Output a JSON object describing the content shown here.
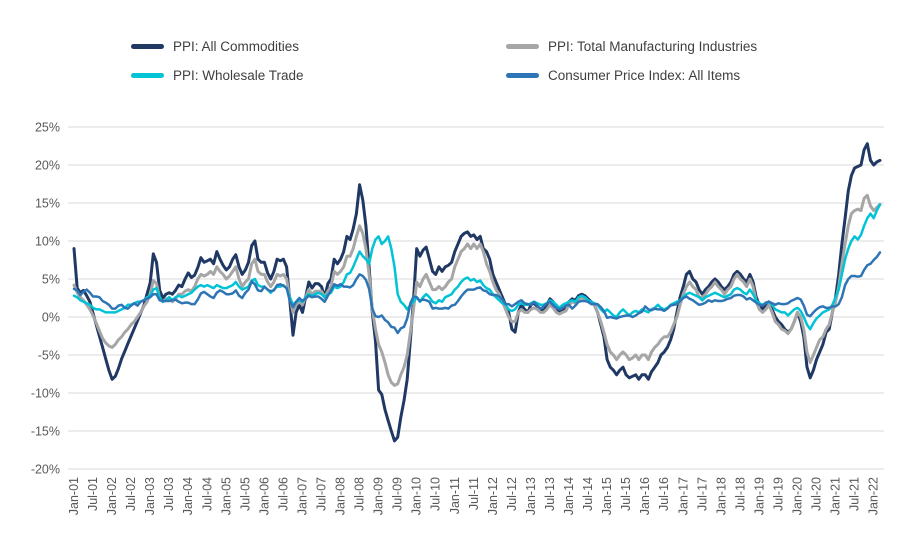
{
  "legend": {
    "items": [
      {
        "label": "PPI: All Commodities",
        "color": "#1f3864"
      },
      {
        "label": "PPI: Total Manufacturing Industries",
        "color": "#a6a6a6"
      },
      {
        "label": "PPI: Wholesale Trade",
        "color": "#00c3d6"
      },
      {
        "label": "Consumer Price Index: All Items",
        "color": "#2e75b6"
      }
    ]
  },
  "chart_data": {
    "type": "line",
    "title": "",
    "x_frequency": "monthly",
    "x_start": "Jan-01",
    "x_end": "Mar-22",
    "grid": "horizontal",
    "legend_position": "top",
    "ylim": [
      -20,
      25
    ],
    "y_step": 5,
    "y_tick_labels": [
      "25%",
      "20%",
      "15%",
      "10%",
      "5%",
      "0%",
      "-5%",
      "-10%",
      "-15%",
      "-20%"
    ],
    "x_tick_labels": [
      "Jan-01",
      "Jul-01",
      "Jan-02",
      "Jul-02",
      "Jan-03",
      "Jul-03",
      "Jan-04",
      "Jul-04",
      "Jan-05",
      "Jul-05",
      "Jan-06",
      "Jul-06",
      "Jan-07",
      "Jul-07",
      "Jan-08",
      "Jul-08",
      "Jan-09",
      "Jul-09",
      "Jan-10",
      "Jul-10",
      "Jan-11",
      "Jul-11",
      "Jan-12",
      "Jul-12",
      "Jan-13",
      "Jul-13",
      "Jan-14",
      "Jul-14",
      "Jan-15",
      "Jul-15",
      "Jan-16",
      "Jul-16",
      "Jan-17",
      "Jul-17",
      "Jan-18",
      "Jul-18",
      "Jan-19",
      "Jul-19",
      "Jan-20",
      "Jul-20",
      "Jan-21",
      "Jul-21",
      "Jan-22"
    ],
    "series": [
      {
        "name": "PPI: All Commodities",
        "color": "#1f3864",
        "values": [
          9.0,
          3.8,
          3.2,
          3.5,
          2.8,
          2.0,
          0.5,
          -1.0,
          -2.5,
          -4.0,
          -5.5,
          -7.0,
          -8.2,
          -7.8,
          -6.8,
          -5.5,
          -4.5,
          -3.5,
          -2.5,
          -1.5,
          -0.5,
          0.5,
          1.5,
          3.0,
          4.5,
          8.3,
          7.2,
          3.5,
          2.5,
          3.0,
          3.2,
          3.0,
          3.5,
          4.2,
          4.0,
          5.0,
          5.8,
          5.2,
          5.5,
          6.5,
          7.8,
          7.2,
          7.4,
          7.6,
          7.0,
          8.6,
          7.6,
          6.8,
          6.2,
          6.6,
          7.6,
          8.2,
          6.6,
          5.6,
          6.2,
          7.2,
          9.4,
          10.0,
          7.6,
          7.2,
          7.2,
          5.8,
          5.0,
          6.0,
          7.6,
          7.4,
          7.6,
          6.6,
          2.2,
          -2.4,
          0.6,
          1.6,
          0.6,
          2.6,
          4.6,
          3.8,
          4.4,
          4.4,
          4.0,
          2.6,
          4.4,
          5.0,
          7.6,
          7.0,
          7.6,
          8.6,
          10.6,
          10.2,
          11.6,
          13.6,
          17.4,
          15.4,
          12.0,
          6.6,
          0.6,
          -3.2,
          -9.6,
          -10.2,
          -12.2,
          -13.6,
          -15.0,
          -16.3,
          -15.8,
          -13.2,
          -11.0,
          -8.2,
          -3.0,
          2.2,
          9.0,
          8.0,
          8.8,
          9.2,
          7.6,
          6.0,
          5.6,
          6.6,
          6.0,
          6.6,
          6.8,
          7.2,
          8.6,
          9.6,
          10.6,
          11.0,
          11.2,
          10.6,
          10.8,
          10.2,
          10.6,
          9.0,
          8.6,
          7.6,
          5.6,
          4.6,
          3.6,
          2.6,
          1.6,
          0.6,
          -1.6,
          -2.0,
          0.6,
          1.6,
          1.0,
          0.6,
          1.6,
          1.8,
          1.4,
          1.0,
          0.8,
          1.6,
          2.4,
          2.0,
          1.0,
          0.6,
          0.8,
          1.2,
          2.0,
          2.4,
          2.2,
          2.8,
          3.0,
          2.8,
          2.4,
          2.0,
          1.6,
          0.6,
          -1.0,
          -2.6,
          -5.6,
          -6.6,
          -7.0,
          -7.6,
          -7.0,
          -6.6,
          -7.6,
          -8.0,
          -7.8,
          -7.6,
          -8.2,
          -7.6,
          -7.6,
          -8.2,
          -7.2,
          -6.6,
          -6.0,
          -5.0,
          -4.6,
          -4.0,
          -3.0,
          -1.6,
          0.6,
          2.6,
          4.0,
          5.6,
          6.0,
          5.0,
          4.6,
          3.6,
          3.0,
          3.6,
          4.0,
          4.6,
          5.0,
          4.6,
          4.0,
          3.6,
          4.0,
          4.6,
          5.6,
          6.0,
          5.6,
          5.0,
          4.6,
          5.6,
          4.6,
          2.6,
          1.6,
          1.0,
          1.6,
          2.0,
          1.0,
          0.0,
          -0.6,
          -1.0,
          -1.6,
          -2.0,
          -1.6,
          -0.6,
          0.6,
          -0.6,
          -2.6,
          -6.6,
          -8.0,
          -7.0,
          -5.6,
          -4.6,
          -3.6,
          -2.0,
          -1.6,
          0.6,
          2.6,
          5.6,
          9.6,
          13.0,
          16.6,
          18.6,
          19.6,
          19.8,
          20.0,
          22.0,
          22.8,
          20.6,
          20.0,
          20.4,
          20.6
        ]
      },
      {
        "name": "PPI: Total Manufacturing Industries",
        "color": "#a6a6a6",
        "values": [
          4.2,
          3.2,
          2.6,
          2.2,
          1.6,
          1.0,
          0.2,
          -0.8,
          -1.8,
          -2.8,
          -3.4,
          -3.8,
          -4.0,
          -3.6,
          -3.0,
          -2.6,
          -2.0,
          -1.6,
          -1.0,
          -0.6,
          0.0,
          0.6,
          1.4,
          2.0,
          3.0,
          4.8,
          4.4,
          2.4,
          2.0,
          2.4,
          2.4,
          2.0,
          2.4,
          3.0,
          3.0,
          3.4,
          3.6,
          3.4,
          4.0,
          5.0,
          5.6,
          5.4,
          5.6,
          6.0,
          5.6,
          6.6,
          6.0,
          5.6,
          5.0,
          5.4,
          6.0,
          6.6,
          5.0,
          4.0,
          4.6,
          5.0,
          7.0,
          7.6,
          6.0,
          5.6,
          5.6,
          4.6,
          4.0,
          4.6,
          5.6,
          5.4,
          5.6,
          5.0,
          2.6,
          0.6,
          1.6,
          2.0,
          1.6,
          2.6,
          3.6,
          3.0,
          3.4,
          3.4,
          3.4,
          2.6,
          3.4,
          4.0,
          6.0,
          5.6,
          6.0,
          6.6,
          8.0,
          8.0,
          9.0,
          10.6,
          12.0,
          11.0,
          9.0,
          5.6,
          1.0,
          -1.6,
          -3.6,
          -4.6,
          -6.0,
          -7.6,
          -8.6,
          -9.0,
          -8.8,
          -7.6,
          -6.6,
          -5.0,
          -2.0,
          1.0,
          4.6,
          4.0,
          5.0,
          5.6,
          4.6,
          3.6,
          3.6,
          4.0,
          3.6,
          4.0,
          4.6,
          5.0,
          6.6,
          7.6,
          8.6,
          9.0,
          9.6,
          9.0,
          9.6,
          9.0,
          9.6,
          8.6,
          7.0,
          6.0,
          4.6,
          3.6,
          3.0,
          2.0,
          1.0,
          0.0,
          -0.6,
          -0.6,
          0.6,
          1.0,
          0.6,
          0.6,
          1.0,
          1.2,
          1.0,
          0.6,
          0.6,
          1.0,
          1.6,
          1.2,
          0.6,
          0.4,
          0.6,
          0.8,
          1.6,
          2.0,
          1.8,
          2.2,
          2.6,
          2.2,
          2.0,
          1.8,
          1.6,
          0.6,
          -0.6,
          -2.0,
          -3.6,
          -4.6,
          -5.0,
          -5.6,
          -5.0,
          -4.6,
          -5.0,
          -5.6,
          -5.4,
          -5.0,
          -5.6,
          -5.0,
          -5.0,
          -5.6,
          -4.6,
          -4.0,
          -3.6,
          -3.0,
          -2.6,
          -2.6,
          -2.0,
          -1.0,
          0.0,
          1.6,
          3.0,
          4.0,
          4.6,
          4.0,
          3.6,
          2.6,
          2.6,
          3.0,
          3.6,
          4.0,
          4.6,
          4.0,
          3.6,
          3.0,
          3.6,
          4.0,
          5.0,
          5.6,
          5.0,
          4.6,
          4.0,
          5.0,
          4.0,
          2.0,
          1.0,
          0.6,
          1.0,
          1.6,
          0.6,
          -0.6,
          -1.0,
          -1.6,
          -1.8,
          -2.2,
          -1.6,
          -0.6,
          0.6,
          0.0,
          -1.6,
          -4.6,
          -6.0,
          -5.0,
          -4.0,
          -3.0,
          -2.6,
          -1.6,
          -1.0,
          0.6,
          2.0,
          4.0,
          7.0,
          9.6,
          12.0,
          13.6,
          14.0,
          14.2,
          14.0,
          15.6,
          16.0,
          14.6,
          14.0,
          14.4,
          14.8
        ]
      },
      {
        "name": "PPI: Wholesale Trade",
        "color": "#00c3d6",
        "values": [
          2.8,
          2.6,
          2.2,
          2.0,
          1.8,
          1.6,
          1.2,
          1.0,
          1.0,
          0.8,
          0.6,
          0.6,
          0.6,
          0.6,
          0.8,
          1.0,
          1.2,
          1.6,
          1.6,
          1.8,
          2.0,
          2.0,
          2.2,
          2.6,
          2.8,
          3.6,
          3.8,
          2.6,
          2.0,
          2.2,
          2.6,
          2.2,
          2.6,
          2.8,
          2.6,
          2.8,
          3.0,
          3.2,
          3.6,
          4.0,
          4.2,
          4.0,
          4.2,
          4.0,
          3.8,
          4.2,
          4.0,
          3.8,
          3.8,
          4.0,
          4.2,
          4.6,
          4.0,
          3.6,
          3.8,
          4.0,
          4.8,
          5.0,
          4.2,
          4.0,
          4.0,
          3.6,
          3.2,
          3.6,
          4.0,
          4.0,
          4.2,
          3.8,
          2.6,
          1.6,
          2.0,
          2.2,
          2.0,
          2.6,
          3.0,
          2.8,
          3.0,
          3.2,
          3.0,
          2.6,
          3.0,
          3.2,
          4.0,
          3.8,
          4.0,
          4.6,
          5.6,
          5.8,
          6.6,
          7.6,
          8.6,
          8.0,
          7.6,
          7.0,
          9.0,
          10.2,
          10.6,
          9.6,
          10.0,
          10.6,
          9.0,
          6.6,
          3.0,
          2.0,
          1.6,
          1.0,
          1.6,
          2.0,
          2.6,
          2.0,
          2.6,
          3.0,
          2.6,
          2.0,
          1.8,
          2.2,
          2.0,
          2.6,
          2.8,
          3.0,
          3.6,
          4.0,
          4.6,
          5.0,
          5.2,
          4.8,
          5.0,
          4.6,
          4.8,
          4.2,
          3.8,
          3.6,
          3.0,
          2.6,
          2.2,
          1.8,
          1.6,
          1.0,
          0.8,
          1.0,
          1.6,
          1.8,
          1.6,
          1.6,
          1.8,
          2.0,
          1.8,
          1.6,
          1.6,
          1.8,
          2.2,
          2.0,
          1.6,
          1.2,
          1.6,
          1.8,
          2.0,
          2.2,
          2.0,
          2.6,
          2.8,
          2.6,
          2.2,
          2.0,
          1.8,
          1.6,
          1.0,
          0.6,
          1.0,
          0.6,
          0.2,
          0.0,
          0.6,
          1.0,
          0.6,
          0.2,
          0.6,
          0.8,
          0.6,
          1.0,
          0.8,
          0.6,
          1.0,
          1.2,
          1.6,
          1.2,
          1.0,
          1.2,
          1.6,
          1.8,
          2.0,
          2.2,
          2.6,
          3.0,
          3.2,
          3.0,
          2.8,
          2.6,
          2.2,
          2.6,
          2.8,
          3.0,
          3.2,
          3.0,
          2.8,
          2.6,
          2.8,
          3.0,
          3.6,
          3.8,
          3.6,
          3.2,
          3.0,
          3.6,
          3.0,
          2.2,
          1.8,
          1.6,
          1.8,
          2.0,
          1.6,
          1.0,
          0.8,
          0.6,
          0.6,
          0.2,
          0.6,
          1.0,
          1.2,
          0.8,
          0.0,
          -1.0,
          -1.6,
          -0.8,
          -0.2,
          0.2,
          0.6,
          0.8,
          1.0,
          1.6,
          2.6,
          3.6,
          5.6,
          7.6,
          9.0,
          10.0,
          10.6,
          10.2,
          10.8,
          12.0,
          13.0,
          13.6,
          13.0,
          14.0,
          14.8
        ]
      },
      {
        "name": "Consumer Price Index: All Items",
        "color": "#2e75b6",
        "values": [
          3.7,
          3.5,
          2.9,
          3.3,
          3.6,
          3.2,
          2.7,
          2.7,
          2.6,
          2.1,
          1.9,
          1.6,
          1.1,
          1.1,
          1.5,
          1.6,
          1.2,
          1.1,
          1.5,
          1.8,
          1.5,
          2.0,
          2.2,
          2.4,
          2.6,
          3.0,
          3.0,
          2.2,
          2.1,
          2.1,
          2.1,
          2.2,
          2.3,
          2.0,
          1.8,
          1.9,
          1.9,
          1.7,
          1.7,
          2.3,
          3.1,
          3.3,
          3.0,
          2.7,
          2.5,
          3.2,
          3.5,
          3.3,
          3.0,
          3.0,
          3.1,
          3.5,
          2.8,
          2.5,
          3.2,
          3.6,
          4.7,
          4.3,
          3.5,
          3.4,
          4.0,
          3.6,
          3.4,
          3.5,
          4.2,
          4.3,
          4.1,
          3.8,
          2.1,
          1.3,
          2.0,
          2.5,
          2.1,
          2.4,
          2.8,
          2.6,
          2.7,
          2.7,
          2.4,
          2.0,
          2.8,
          3.5,
          4.3,
          4.1,
          4.3,
          4.0,
          4.0,
          3.9,
          4.2,
          5.0,
          5.6,
          5.4,
          4.9,
          3.7,
          1.1,
          0.1,
          0.0,
          0.2,
          -0.4,
          -0.7,
          -1.3,
          -1.4,
          -2.1,
          -1.5,
          -1.3,
          -0.2,
          1.8,
          2.7,
          2.6,
          2.1,
          2.3,
          2.2,
          2.0,
          1.1,
          1.2,
          1.1,
          1.1,
          1.2,
          1.1,
          1.5,
          1.6,
          2.1,
          2.7,
          3.2,
          3.6,
          3.6,
          3.6,
          3.8,
          3.9,
          3.5,
          3.4,
          3.0,
          2.9,
          2.9,
          2.7,
          2.3,
          1.7,
          1.7,
          1.4,
          1.7,
          2.0,
          2.2,
          1.8,
          1.7,
          1.6,
          2.0,
          1.5,
          1.1,
          1.4,
          1.8,
          2.0,
          1.5,
          1.2,
          1.0,
          1.2,
          1.5,
          1.6,
          1.1,
          1.5,
          2.0,
          2.1,
          2.1,
          2.0,
          1.7,
          1.7,
          1.7,
          1.3,
          0.8,
          -0.1,
          0.0,
          -0.1,
          -0.2,
          0.0,
          0.1,
          0.2,
          0.2,
          0.0,
          0.2,
          0.5,
          0.7,
          1.4,
          1.0,
          0.9,
          1.1,
          1.0,
          1.0,
          0.8,
          1.1,
          1.5,
          1.6,
          1.7,
          2.1,
          2.5,
          2.7,
          2.4,
          2.2,
          1.9,
          1.6,
          1.7,
          1.9,
          2.2,
          2.0,
          2.2,
          2.1,
          2.1,
          2.2,
          2.4,
          2.5,
          2.8,
          2.9,
          2.9,
          2.7,
          2.3,
          2.5,
          2.2,
          1.9,
          1.6,
          1.5,
          1.9,
          2.0,
          1.8,
          1.6,
          1.8,
          1.7,
          1.7,
          1.8,
          2.1,
          2.3,
          2.5,
          2.3,
          1.5,
          0.3,
          0.1,
          0.6,
          1.0,
          1.3,
          1.4,
          1.2,
          1.2,
          1.4,
          1.4,
          1.7,
          2.6,
          4.2,
          5.0,
          5.4,
          5.4,
          5.3,
          5.4,
          6.2,
          6.8,
          7.0,
          7.5,
          7.9,
          8.5
        ]
      }
    ]
  }
}
